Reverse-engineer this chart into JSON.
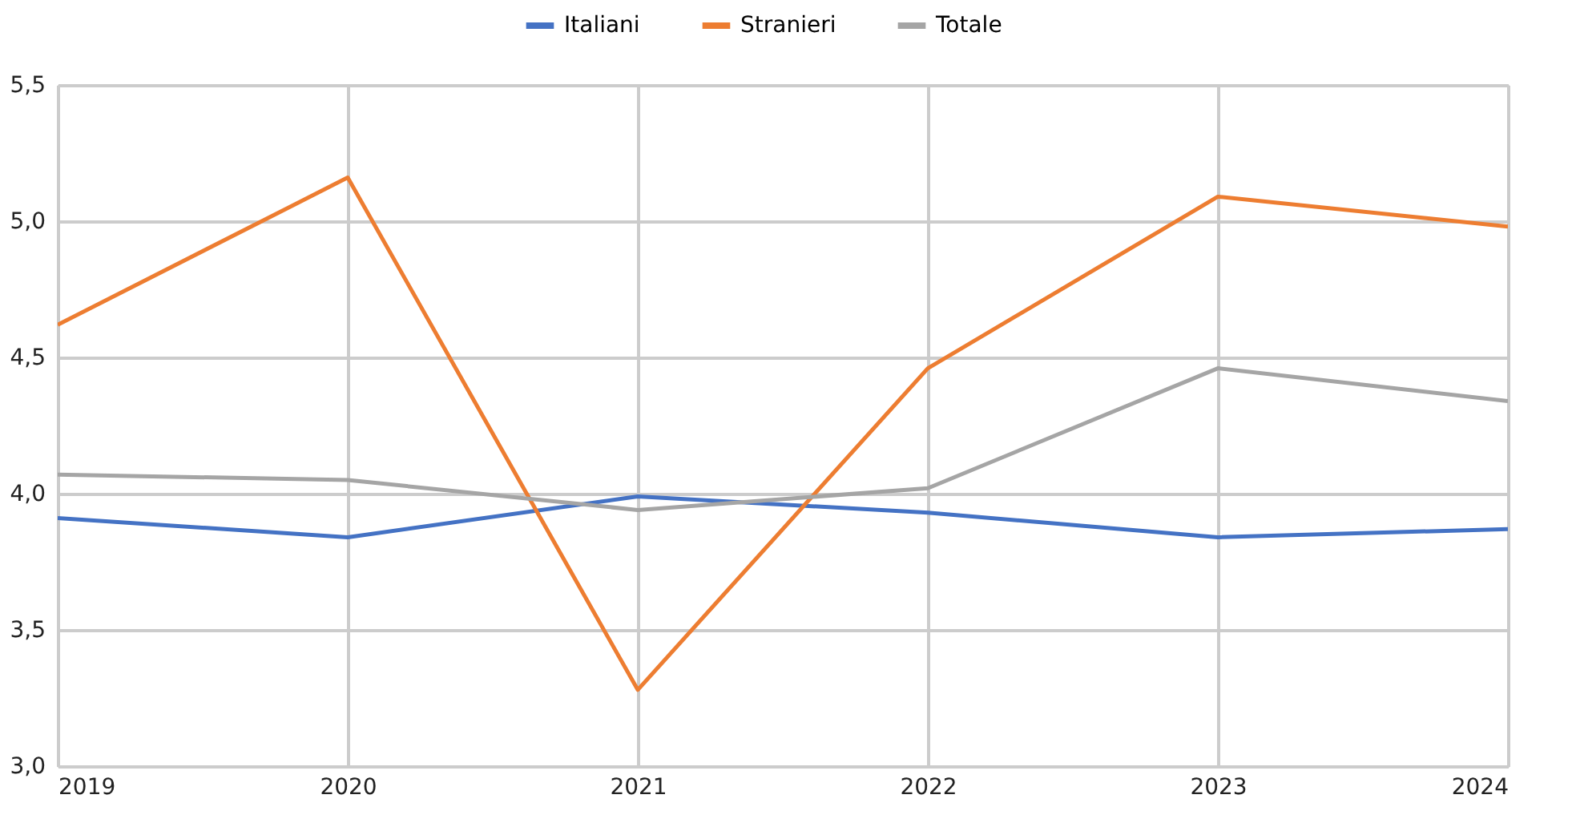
{
  "chart_data": {
    "type": "line",
    "x": [
      2019,
      2020,
      2021,
      2022,
      2023,
      2024
    ],
    "series": [
      {
        "name": "Italiani",
        "color": "#4472c4",
        "values": [
          3.91,
          3.84,
          3.99,
          3.93,
          3.84,
          3.87
        ]
      },
      {
        "name": "Stranieri",
        "color": "#ed7d31",
        "values": [
          4.62,
          5.16,
          3.28,
          4.46,
          5.09,
          4.98
        ]
      },
      {
        "name": "Totale",
        "color": "#a5a5a5",
        "values": [
          4.07,
          4.05,
          3.94,
          4.02,
          4.46,
          4.34
        ]
      }
    ],
    "xlim": [
      2019,
      2024
    ],
    "xticks": [
      2019,
      2020,
      2021,
      2022,
      2023,
      2024
    ],
    "ylim": [
      3.0,
      5.5
    ],
    "yticks": [
      {
        "value": 3.0,
        "label": "3,0"
      },
      {
        "value": 3.5,
        "label": "3,5"
      },
      {
        "value": 4.0,
        "label": "4,0"
      },
      {
        "value": 4.5,
        "label": "4,5"
      },
      {
        "value": 5.0,
        "label": "5,0"
      },
      {
        "value": 5.5,
        "label": "5,5"
      }
    ],
    "grid": true,
    "legend": "top",
    "marker": "none",
    "line_style": "solid"
  }
}
